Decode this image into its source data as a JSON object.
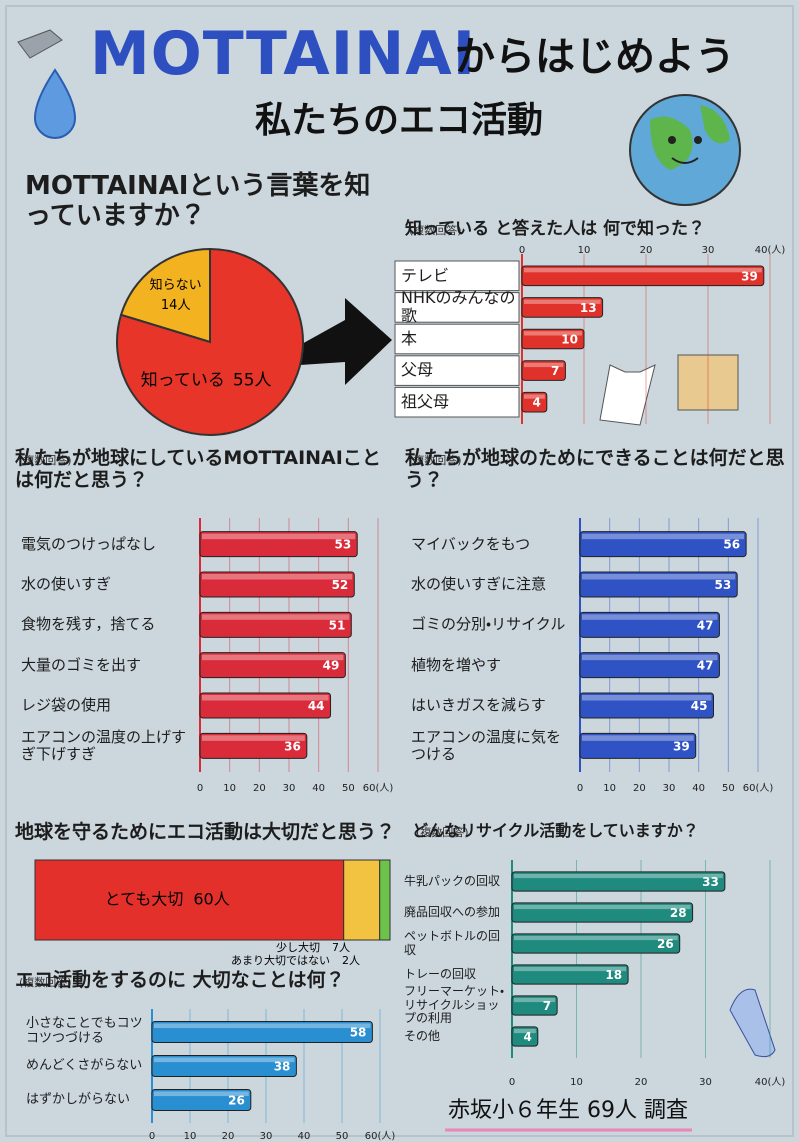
{
  "header": {
    "title_a": "MOTTAINAI",
    "title_b": "からはじめよう",
    "subtitle": "私たちのエコ活動"
  },
  "footer": "赤坂小６年生 69人 調査",
  "chart_data": [
    {
      "type": "pie",
      "title": "MOTTAINAIという言葉を知っていますか？",
      "categories": [
        "知らない",
        "知っている"
      ],
      "values": [
        14,
        55
      ],
      "value_labels": [
        "14人",
        "55人"
      ],
      "colors": [
        "#f3b21f",
        "#e8352a"
      ]
    },
    {
      "type": "hbar",
      "title": "知っている と答えた人は 何で知った？",
      "note": "(複数回答)",
      "categories": [
        "テレビ",
        "NHKのみんなの歌",
        "本",
        "父母",
        "祖父母"
      ],
      "values": [
        39,
        13,
        10,
        7,
        4
      ],
      "color": "#e0322a",
      "xlim": [
        0,
        40
      ],
      "xticks": [
        0,
        10,
        20,
        30,
        {
          "value": 40,
          "label": "40(人)"
        }
      ],
      "grid": true
    },
    {
      "type": "hbar",
      "title": "私たちが地球にしているMOTTAINAIことは何だと思う？",
      "note": "(複数回答)",
      "categories": [
        "電気のつけっぱなし",
        "水の使いすぎ",
        "食物を残す，捨てる",
        "大量のゴミを出す",
        "レジ袋の使用",
        "エアコンの温度の上げすぎ下げすぎ"
      ],
      "values": [
        53,
        52,
        51,
        49,
        44,
        36
      ],
      "color": "#d92b3a",
      "xlim": [
        0,
        60
      ],
      "xticks": [
        0,
        10,
        20,
        30,
        40,
        50,
        {
          "value": 60,
          "label": "60(人)"
        }
      ],
      "grid": true
    },
    {
      "type": "hbar",
      "title": "私たちが地球のためにできることは何だと思う？",
      "note": "(複数回答)",
      "categories": [
        "マイバックをもつ",
        "水の使いすぎに注意",
        "ゴミの分別・リサイクル",
        "植物を増やす",
        "はいきガスを減らす",
        "エアコンの温度に気をつける"
      ],
      "values": [
        56,
        53,
        47,
        47,
        45,
        39
      ],
      "color": "#2f52c4",
      "xlim": [
        0,
        60
      ],
      "xticks": [
        0,
        10,
        20,
        30,
        40,
        50,
        {
          "value": 60,
          "label": "60(人)"
        }
      ],
      "grid": true
    },
    {
      "type": "stacked_bar",
      "title": "地球を守るためにエコ活動は大切だと思う？",
      "categories": [
        "とても大切",
        "少し大切",
        "あまり大切ではない"
      ],
      "values": [
        60,
        7,
        2
      ],
      "value_labels": [
        "60人",
        "7人",
        "2人"
      ],
      "colors": [
        "#e3302a",
        "#f2c340",
        "#6cc24a"
      ]
    },
    {
      "type": "hbar",
      "title": "どんなリサイクル活動をしていますか？",
      "note": "(複数回答)",
      "categories": [
        "牛乳パックの回収",
        "廃品回収への参加",
        "ペットボトルの回収",
        "トレーの回収",
        "フリーマーケット・リサイクルショップの利用",
        "その他"
      ],
      "values": [
        33,
        28,
        26,
        18,
        7,
        4
      ],
      "color": "#1f8a7e",
      "xlim": [
        0,
        40
      ],
      "xticks": [
        0,
        10,
        20,
        30,
        {
          "value": 40,
          "label": "40(人)"
        }
      ],
      "grid": true
    },
    {
      "type": "hbar",
      "title": "エコ活動をするのに 大切なことは何？",
      "note": "(複数回答)",
      "categories": [
        "小さなことでもコツコツつづける",
        "めんどくさがらない",
        "はずかしがらない"
      ],
      "values": [
        58,
        38,
        26
      ],
      "color": "#2a8fd0",
      "xlim": [
        0,
        60
      ],
      "xticks": [
        0,
        10,
        20,
        30,
        40,
        50,
        {
          "value": 60,
          "label": "60(人)"
        }
      ],
      "grid": true
    }
  ]
}
